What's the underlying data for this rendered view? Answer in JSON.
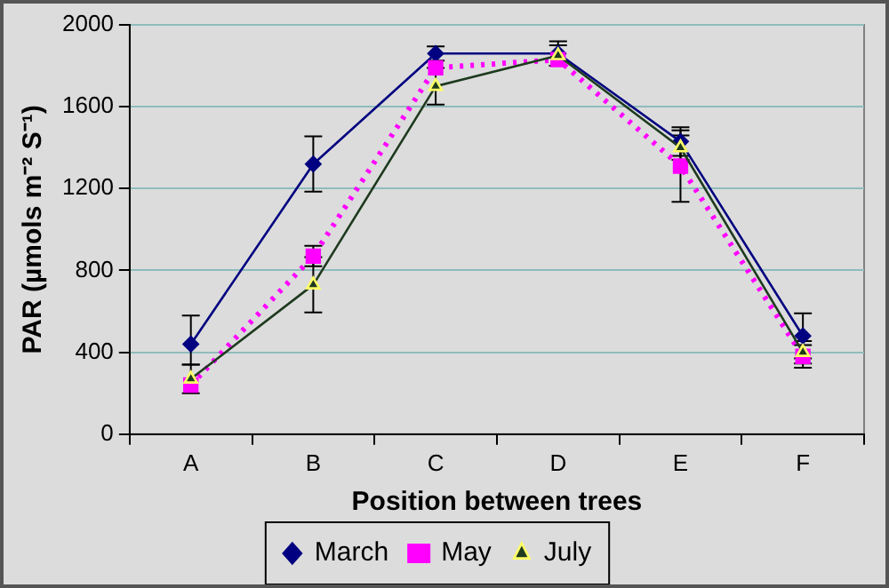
{
  "chart_data": {
    "type": "line",
    "xlabel": "Position between trees",
    "ylabel": "PAR (µmols m⁻² S⁻¹)",
    "categories": [
      "A",
      "B",
      "C",
      "D",
      "E",
      "F"
    ],
    "series": [
      {
        "name": "March",
        "color": "#000080",
        "marker": "diamond",
        "line_style": "solid",
        "values": [
          440,
          1320,
          1860,
          1860,
          1430,
          480
        ],
        "errors": [
          [
            340,
            580
          ],
          135,
          35,
          60,
          70,
          110
        ]
      },
      {
        "name": "May",
        "color": "#ff00ff",
        "marker": "square",
        "line_style": "dotted",
        "values": [
          240,
          870,
          1790,
          1830,
          1310,
          380
        ],
        "errors": [
          null,
          50,
          null,
          null,
          175,
          55
        ]
      },
      {
        "name": "July",
        "color": "#1e3a1e",
        "marker": "triangle",
        "line_style": "solid",
        "values": [
          270,
          730,
          1700,
          1850,
          1400,
          400
        ],
        "errors": [
          70,
          135,
          90,
          50,
          60,
          55
        ]
      }
    ],
    "ylim": [
      0,
      2000
    ],
    "yticks": [
      0,
      400,
      800,
      1200,
      1600,
      2000
    ],
    "grid": "y",
    "legend": "bottom"
  }
}
